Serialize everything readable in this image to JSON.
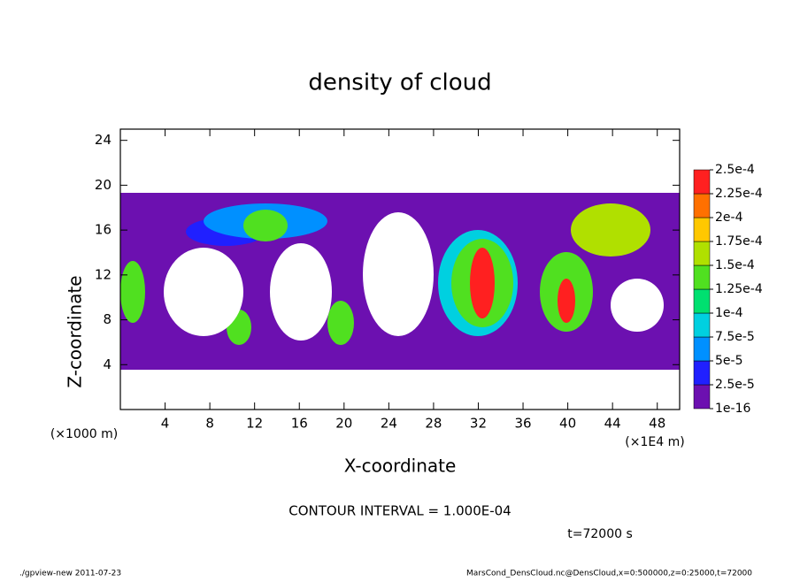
{
  "chart_data": {
    "type": "contour",
    "title": "density of cloud",
    "x_label": "X-coordinate",
    "y_label": "Z-coordinate",
    "x_unit_left": "(×1000 m)",
    "x_unit_right": "(×1E4 m)",
    "contour_interval": "CONTOUR INTERVAL = 1.000E-04",
    "time_label": "t=72000 s",
    "footer_left": "./gpview-new  2011-07-23",
    "footer_right": "MarsCond_DensCloud.nc@DensCloud,x=0:500000,z=0:25000,t=72000",
    "xlim": [
      0,
      50
    ],
    "ylim": [
      0,
      25
    ],
    "xticks": [
      4,
      8,
      12,
      16,
      20,
      24,
      28,
      32,
      36,
      40,
      44,
      48
    ],
    "yticks": [
      4,
      8,
      12,
      16,
      20,
      24
    ],
    "colorbar": {
      "levels": [
        {
          "value": 1e-16,
          "label": "1e-16"
        },
        {
          "value": 2.5e-05,
          "label": "2.5e-5"
        },
        {
          "value": 5e-05,
          "label": "5e-5"
        },
        {
          "value": 7.5e-05,
          "label": "7.5e-5"
        },
        {
          "value": 0.0001,
          "label": "1e-4"
        },
        {
          "value": 0.000125,
          "label": "1.25e-4"
        },
        {
          "value": 0.00015,
          "label": "1.5e-4"
        },
        {
          "value": 0.000175,
          "label": "1.75e-4"
        },
        {
          "value": 0.0002,
          "label": "2e-4"
        },
        {
          "value": 0.000225,
          "label": "2.25e-4"
        },
        {
          "value": 0.00025,
          "label": "2.5e-4"
        }
      ],
      "colors": [
        "#6c10b0",
        "#2020ff",
        "#0090ff",
        "#00d0e0",
        "#00e070",
        "#50e020",
        "#b0e000",
        "#ffc800",
        "#ff7000",
        "#ff2020"
      ]
    }
  }
}
